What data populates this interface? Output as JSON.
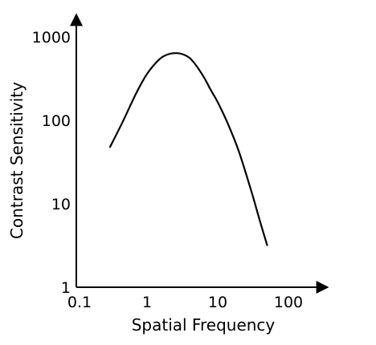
{
  "chart_data": {
    "type": "line",
    "title": "",
    "xlabel": "Spatial Frequency",
    "ylabel": "Contrast Sensitivity",
    "x_scale": "log",
    "y_scale": "log",
    "xlim": [
      0.1,
      200
    ],
    "ylim": [
      1,
      2000
    ],
    "x_ticks": [
      {
        "value": 0.1,
        "label": "0.1"
      },
      {
        "value": 1,
        "label": "1"
      },
      {
        "value": 10,
        "label": "10"
      },
      {
        "value": 100,
        "label": "100"
      }
    ],
    "y_ticks": [
      {
        "value": 1,
        "label": "1"
      },
      {
        "value": 10,
        "label": "10"
      },
      {
        "value": 100,
        "label": "100"
      },
      {
        "value": 1000,
        "label": "1000"
      }
    ],
    "grid": false,
    "legend": "none",
    "series": [
      {
        "x": [
          0.3,
          0.45,
          0.7,
          1.0,
          1.5,
          2.0,
          2.6,
          3.2,
          4.0,
          5.0,
          6.5,
          8.0,
          10.0,
          14.0,
          20.0,
          30.0,
          40.0,
          50.0
        ],
        "y": [
          48,
          95,
          210,
          360,
          540,
          620,
          640,
          620,
          560,
          450,
          320,
          230,
          165,
          90,
          42,
          14,
          6,
          3.2
        ]
      }
    ],
    "colors": {
      "axis": "#000000",
      "line": "#000000",
      "background": "#ffffff"
    }
  }
}
